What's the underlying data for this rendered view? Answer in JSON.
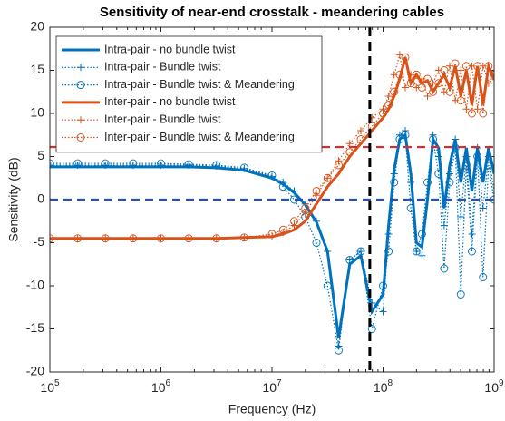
{
  "chart_data": {
    "type": "line",
    "title": "Sensitivity of near-end crosstalk - meandering cables",
    "x_label": "Frequency (Hz)",
    "y_label": "Sensitivity (dB)",
    "xscale": "log",
    "xlim": [
      100000,
      1000000000
    ],
    "ylim": [
      -20,
      20
    ],
    "xticks": [
      {
        "value": 100000,
        "label": "10^5"
      },
      {
        "value": 1000000,
        "label": "10^6"
      },
      {
        "value": 10000000,
        "label": "10^7"
      },
      {
        "value": 100000000,
        "label": "10^8"
      },
      {
        "value": 1000000000,
        "label": "10^9"
      }
    ],
    "yticks": [
      -20,
      -15,
      -10,
      -5,
      0,
      5,
      10,
      15,
      20
    ],
    "grid": false,
    "legend": "upper left",
    "x": [
      100000,
      177828,
      316228,
      562341,
      1000000,
      1778279,
      3162278,
      5623413,
      10000000,
      12589254,
      15848932,
      19952623,
      25118864,
      31622777,
      39810717,
      50118723,
      63095734,
      79432823,
      100000000,
      112201845,
      125892541,
      141253754,
      158489319,
      177827941,
      199526231,
      223872114,
      251188643,
      281838293,
      316227766,
      354813389,
      398107171,
      446683592,
      501187234,
      562341325,
      630957344,
      707945784,
      794328235,
      891250938,
      1000000000
    ],
    "series": [
      {
        "name": "Intra-pair - no bundle twist",
        "color": "#0072BD",
        "linestyle": "solid",
        "marker": "none",
        "values": [
          3.8,
          3.8,
          3.8,
          3.8,
          3.8,
          3.8,
          3.7,
          3.4,
          2.5,
          1.8,
          0.8,
          -0.6,
          -2.6,
          -6,
          -16,
          -7.5,
          -6.5,
          -13,
          -11,
          -3,
          3.5,
          7,
          7.5,
          3,
          -5,
          -5.5,
          0,
          7,
          6,
          -1,
          4,
          7,
          2,
          6,
          1,
          6,
          2,
          6,
          3
        ]
      },
      {
        "name": "Intra-pair - Bundle twist",
        "color": "#0072BD",
        "linestyle": "dotted",
        "marker": "plus",
        "values": [
          4.0,
          4.0,
          4.0,
          4.0,
          4.0,
          4.0,
          3.9,
          3.6,
          2.7,
          2.0,
          1.0,
          -0.5,
          -2.5,
          -6,
          -17,
          -7,
          -6,
          -12,
          -13,
          -4,
          3,
          7.5,
          8,
          2,
          -6,
          -6.5,
          1,
          7.5,
          5,
          -3,
          3,
          7,
          -2,
          5,
          -4,
          6,
          -1,
          5,
          1
        ]
      },
      {
        "name": "Intra-pair - Bundle twist & Meandering",
        "color": "#0072BD",
        "linestyle": "dotted",
        "marker": "circle",
        "values": [
          4.2,
          4.2,
          4.2,
          4.2,
          4.2,
          4.1,
          4.0,
          3.7,
          2.8,
          1.5,
          0,
          -2,
          -5,
          -10,
          -17.5,
          -7,
          -6,
          -15,
          -10,
          -6,
          2,
          7,
          7.5,
          -1,
          -6,
          -4,
          2,
          7,
          3,
          -8,
          2,
          6,
          -11,
          4,
          -6,
          5,
          -9,
          4,
          0
        ]
      },
      {
        "name": "Inter-pair - no bundle twist",
        "color": "#D95319",
        "linestyle": "solid",
        "marker": "none",
        "values": [
          -4.5,
          -4.5,
          -4.5,
          -4.5,
          -4.5,
          -4.5,
          -4.5,
          -4.4,
          -4.3,
          -4.0,
          -3.5,
          -2.5,
          -0.5,
          1.5,
          3.0,
          5.0,
          6.5,
          8,
          9.5,
          10.5,
          12,
          14,
          16.5,
          13.5,
          14.5,
          13.5,
          13.8,
          12.5,
          13.5,
          14.5,
          13,
          15.5,
          12,
          15,
          11,
          15.5,
          11,
          15.5,
          14
        ]
      },
      {
        "name": "Inter-pair - Bundle twist",
        "color": "#D95319",
        "linestyle": "dotted",
        "marker": "plus",
        "values": [
          -4.5,
          -4.5,
          -4.5,
          -4.5,
          -4.5,
          -4.5,
          -4.5,
          -4.4,
          -4.2,
          -3.8,
          -3.0,
          -1.5,
          0.5,
          2.5,
          4.5,
          6.5,
          8,
          9.5,
          10.5,
          12,
          14.5,
          16.8,
          13,
          14.5,
          13,
          14,
          12,
          13.5,
          15,
          12.5,
          15.5,
          11.5,
          15,
          10.5,
          15.5,
          10.5,
          15.5,
          13.5,
          14
        ]
      },
      {
        "name": "Inter-pair - Bundle twist & Meandering",
        "color": "#D95319",
        "linestyle": "dotted",
        "marker": "circle",
        "values": [
          -4.5,
          -4.5,
          -4.5,
          -4.5,
          -4.5,
          -4.5,
          -4.5,
          -4.4,
          -4.0,
          -3.5,
          -2.5,
          -1.0,
          1.0,
          2.5,
          4.0,
          5.5,
          7,
          8.5,
          10,
          11,
          12.5,
          14.5,
          16.5,
          13.5,
          14.5,
          13,
          14,
          12.5,
          13.5,
          15,
          12.5,
          15.8,
          11.5,
          15.5,
          10,
          15.5,
          10,
          15.5,
          14.5
        ]
      }
    ],
    "reference_lines": [
      {
        "axis": "y",
        "value": 6.1,
        "color": "#E8262A"
      },
      {
        "axis": "y",
        "value": 0,
        "color": "#2350C0"
      },
      {
        "axis": "x",
        "value": 76000000,
        "color": "#000000"
      }
    ]
  }
}
